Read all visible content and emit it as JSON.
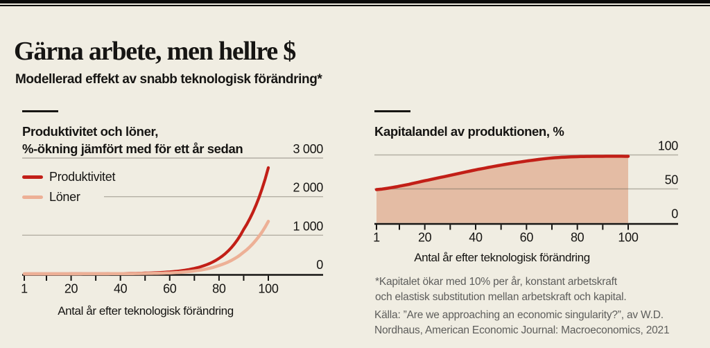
{
  "theme": {
    "background": "#f0ede2",
    "ink": "#161513",
    "rule_black": "#0a0a0a",
    "grid_gray": "#bab7ae",
    "muted_text": "#5d5d5b",
    "series_red": "#c21f17",
    "series_pink": "#edb096",
    "area_fill_pink": "#e4bca4"
  },
  "header": {
    "title": "Gärna arbete, men hellre $",
    "subtitle": "Modellerad effekt av snabb teknologisk förändring*"
  },
  "footnotes": {
    "line1": "*Kapitalet ökar med 10% per år, konstant arbetskraft",
    "line2": "och elastisk substitution mellan arbetskraft och kapital.",
    "source1": "Källa: ”Are we approaching an economic singularity?”, av W.D.",
    "source2": "Nordhaus, American Economic Journal: Macroeconomics, 2021"
  },
  "chart_data": [
    {
      "type": "line",
      "title_lines": [
        "Produktivitet och löner,",
        "%-ökning jämfört med för ett år sedan"
      ],
      "xlabel": "Antal år efter teknologisk förändring",
      "x": [
        1,
        10,
        20,
        30,
        40,
        50,
        60,
        70,
        80,
        90,
        100
      ],
      "series": [
        {
          "name": "Produktivitet",
          "color": "#c21f17",
          "values": [
            0,
            0.3,
            1,
            3,
            7,
            19,
            50,
            140,
            400,
            1150,
            2750
          ]
        },
        {
          "name": "Löner",
          "color": "#edb096",
          "values": [
            0,
            0.2,
            0.6,
            1.5,
            4,
            9,
            24,
            75,
            215,
            560,
            1360
          ]
        }
      ],
      "ylim": [
        0,
        3000
      ],
      "yticks": [
        0,
        1000,
        2000,
        3000
      ],
      "ytick_labels": [
        "0",
        "1 000",
        "2 000",
        "3 000"
      ],
      "xticks_minor": [
        1,
        10,
        20,
        30,
        40,
        50,
        60,
        70,
        80,
        90,
        100
      ],
      "xticks_major": [
        1,
        20,
        40,
        60,
        80,
        100
      ],
      "xtick_labels": [
        "1",
        "20",
        "40",
        "60",
        "80",
        "100"
      ],
      "interpolation": "exponential",
      "grid": true,
      "legend_position": "top-left",
      "y_axis_side": "right"
    },
    {
      "type": "area",
      "title": "Kapitalandel av produktionen, %",
      "xlabel": "Antal år efter teknologisk förändring",
      "x": [
        1,
        10,
        20,
        30,
        40,
        50,
        60,
        70,
        80,
        90,
        100
      ],
      "series": [
        {
          "name": "Kapitalandel",
          "color": "#c21f17",
          "fill": "#e4bca4",
          "values": [
            49,
            54,
            62,
            70,
            78,
            85,
            91,
            95.5,
            97.5,
            98,
            98
          ]
        }
      ],
      "ylim": [
        0,
        100
      ],
      "yticks": [
        0,
        50,
        100
      ],
      "ytick_labels": [
        "0",
        "50",
        "100"
      ],
      "xticks_minor": [
        1,
        10,
        20,
        30,
        40,
        50,
        60,
        70,
        80,
        90,
        100
      ],
      "xticks_major": [
        1,
        20,
        40,
        60,
        80,
        100
      ],
      "xtick_labels": [
        "1",
        "20",
        "40",
        "60",
        "80",
        "100"
      ],
      "interpolation": "smooth",
      "grid": true,
      "y_axis_side": "right"
    }
  ]
}
